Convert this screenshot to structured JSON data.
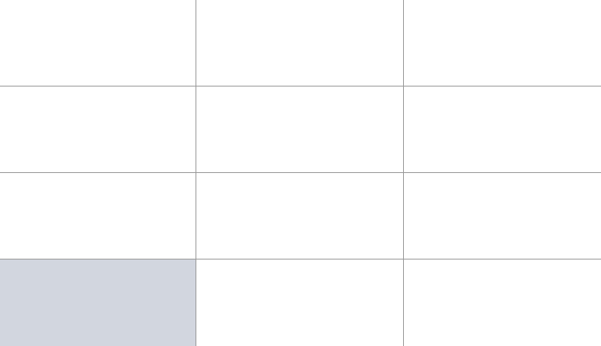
{
  "grid": {
    "rows": 4,
    "columns": 3,
    "selected_cell": {
      "row": 3,
      "column": 0
    },
    "cell_labels": [
      [
        "",
        "",
        ""
      ],
      [
        "",
        "",
        ""
      ],
      [
        "",
        "",
        ""
      ],
      [
        "",
        "",
        ""
      ]
    ]
  },
  "colors": {
    "background": "#ffffff",
    "grid_line": "#9a9a9a",
    "selected_fill": "#d2d6df"
  }
}
